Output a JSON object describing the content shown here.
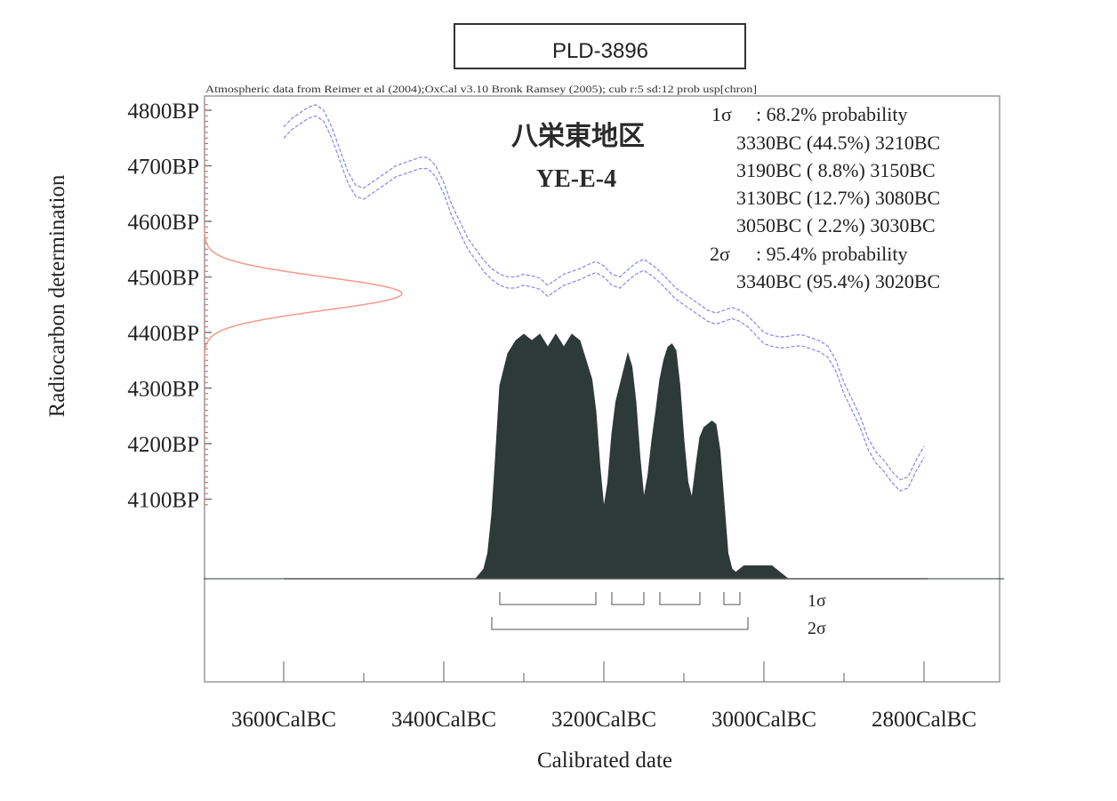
{
  "chart_data": {
    "type": "area",
    "sample_id": "PLD-3896",
    "header_note": "Atmospheric data from Reimer et al (2004);OxCal v3.10 Bronk Ramsey (2005); cub r:5 sd:12 prob usp[chron]",
    "site_name": "八栄東地区",
    "sample_code": "YE-E-4",
    "xlabel": "Calibrated date",
    "ylabel": "Radiocarbon determination",
    "x_unit": "years BC",
    "y_unit": "years BP",
    "xlim": [
      3700,
      2700
    ],
    "ylim": [
      3950,
      4815
    ],
    "x_ticks": [
      {
        "value": 3600,
        "label": "3600CalBC"
      },
      {
        "value": 3400,
        "label": "3400CalBC"
      },
      {
        "value": 3200,
        "label": "3200CalBC"
      },
      {
        "value": 3000,
        "label": "3000CalBC"
      },
      {
        "value": 2800,
        "label": "2800CalBC"
      }
    ],
    "y_ticks": [
      {
        "value": 4800,
        "label": "4800BP"
      },
      {
        "value": 4700,
        "label": "4700BP"
      },
      {
        "value": 4600,
        "label": "4600BP"
      },
      {
        "value": 4500,
        "label": "4500BP"
      },
      {
        "value": 4400,
        "label": "4400BP"
      },
      {
        "value": 4300,
        "label": "4300BP"
      },
      {
        "value": 4200,
        "label": "4200BP"
      },
      {
        "value": 4100,
        "label": "4100BP"
      }
    ],
    "measurement": {
      "mean_bp": 4470,
      "sd": 30
    },
    "calibration_curve": {
      "x": [
        3600,
        3590,
        3580,
        3570,
        3560,
        3550,
        3540,
        3530,
        3520,
        3510,
        3500,
        3490,
        3480,
        3470,
        3460,
        3450,
        3440,
        3430,
        3420,
        3410,
        3400,
        3390,
        3380,
        3370,
        3360,
        3350,
        3340,
        3330,
        3320,
        3310,
        3300,
        3290,
        3280,
        3270,
        3260,
        3250,
        3240,
        3230,
        3220,
        3210,
        3200,
        3190,
        3180,
        3170,
        3160,
        3150,
        3140,
        3130,
        3120,
        3110,
        3100,
        3090,
        3080,
        3070,
        3060,
        3050,
        3040,
        3030,
        3020,
        3010,
        3000,
        2990,
        2980,
        2970,
        2960,
        2950,
        2940,
        2930,
        2920,
        2910,
        2900,
        2890,
        2880,
        2870,
        2860,
        2850,
        2840,
        2830,
        2820,
        2810,
        2800
      ],
      "y": [
        4760,
        4775,
        4785,
        4795,
        4800,
        4790,
        4760,
        4720,
        4680,
        4655,
        4650,
        4660,
        4670,
        4680,
        4690,
        4695,
        4700,
        4705,
        4705,
        4690,
        4660,
        4620,
        4590,
        4560,
        4540,
        4520,
        4505,
        4495,
        4490,
        4490,
        4495,
        4492,
        4488,
        4475,
        4485,
        4495,
        4500,
        4505,
        4512,
        4518,
        4510,
        4495,
        4490,
        4503,
        4515,
        4522,
        4512,
        4500,
        4485,
        4470,
        4460,
        4450,
        4440,
        4430,
        4425,
        4430,
        4435,
        4430,
        4420,
        4405,
        4390,
        4385,
        4382,
        4383,
        4386,
        4385,
        4380,
        4375,
        4365,
        4340,
        4300,
        4270,
        4240,
        4200,
        4175,
        4160,
        4140,
        4125,
        4130,
        4160,
        4185
      ],
      "halfwidth": 10
    },
    "probability_distribution": {
      "x": [
        3700,
        3360,
        3350,
        3345,
        3340,
        3336,
        3330,
        3320,
        3315,
        3310,
        3305,
        3300,
        3295,
        3290,
        3285,
        3280,
        3275,
        3270,
        3265,
        3260,
        3255,
        3250,
        3245,
        3240,
        3235,
        3230,
        3225,
        3220,
        3215,
        3210,
        3205,
        3200,
        3195,
        3190,
        3185,
        3180,
        3175,
        3170,
        3165,
        3160,
        3155,
        3150,
        3145,
        3140,
        3135,
        3130,
        3125,
        3120,
        3115,
        3110,
        3105,
        3100,
        3095,
        3090,
        3085,
        3080,
        3075,
        3070,
        3065,
        3060,
        3055,
        3050,
        3045,
        3040,
        3035,
        3030,
        3025,
        3020,
        3015,
        3010,
        3000,
        2990,
        2980,
        2975,
        2970,
        2960,
        2950,
        2945,
        2940,
        2935,
        2925,
        2915,
        2700
      ],
      "p": [
        0,
        0,
        0.03,
        0.08,
        0.2,
        0.35,
        0.6,
        0.7,
        0.72,
        0.74,
        0.75,
        0.76,
        0.75,
        0.74,
        0.75,
        0.76,
        0.74,
        0.72,
        0.74,
        0.76,
        0.74,
        0.72,
        0.74,
        0.76,
        0.75,
        0.74,
        0.7,
        0.66,
        0.62,
        0.52,
        0.35,
        0.22,
        0.3,
        0.45,
        0.55,
        0.6,
        0.65,
        0.7,
        0.66,
        0.55,
        0.38,
        0.25,
        0.32,
        0.43,
        0.52,
        0.62,
        0.68,
        0.72,
        0.73,
        0.71,
        0.6,
        0.43,
        0.3,
        0.25,
        0.35,
        0.44,
        0.47,
        0.48,
        0.49,
        0.48,
        0.4,
        0.24,
        0.08,
        0.03,
        0.02,
        0.03,
        0.04,
        0.04,
        0.04,
        0.04,
        0.04,
        0.04,
        0.02,
        0.01,
        0,
        0,
        0,
        0,
        0,
        0,
        0,
        0,
        0
      ]
    },
    "sigma1": {
      "label": "1σ",
      "probability_label": ": 68.2% probability",
      "ranges_text": [
        "3330BC (44.5%) 3210BC",
        "3190BC ( 8.8%) 3150BC",
        "3130BC (12.7%) 3080BC",
        "3050BC ( 2.2%) 3030BC"
      ],
      "ranges": [
        [
          3330,
          3210
        ],
        [
          3190,
          3150
        ],
        [
          3130,
          3080
        ],
        [
          3050,
          3030
        ]
      ]
    },
    "sigma2": {
      "label": "2σ",
      "probability_label": ": 95.4% probability",
      "ranges_text": [
        "3340BC (95.4%) 3020BC"
      ],
      "ranges": [
        [
          3340,
          3020
        ]
      ]
    },
    "colors": {
      "frame": "#9a9a9a",
      "curve": "#8e8ee6",
      "measurement": "#f0a090",
      "distribution": "#2e3a38",
      "bracket": "#777777",
      "text": "#222222",
      "tick_red": "#e05a5a"
    }
  }
}
